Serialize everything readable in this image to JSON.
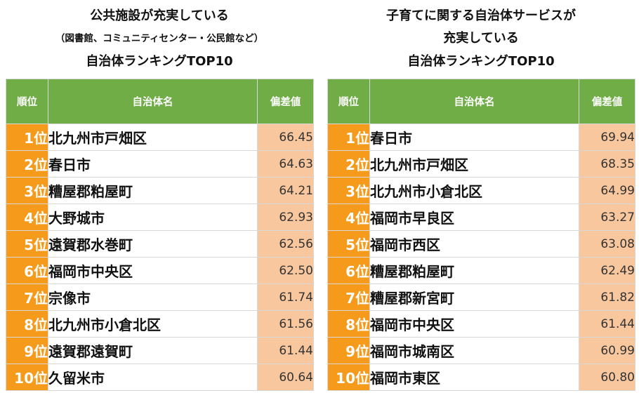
{
  "left": {
    "title_lines": [
      "公共施設が充実している",
      "（図書館、コミュニティセンター・公民館など）",
      "自治体ランキングTOP10"
    ],
    "headers": {
      "rank": "順位",
      "name": "自治体名",
      "score": "偏差値"
    },
    "rows": [
      {
        "rank": "1位",
        "name": "北九州市戸畑区",
        "score": "66.45"
      },
      {
        "rank": "2位",
        "name": "春日市",
        "score": "64.63"
      },
      {
        "rank": "3位",
        "name": "糟屋郡粕屋町",
        "score": "64.21"
      },
      {
        "rank": "4位",
        "name": "大野城市",
        "score": "62.93"
      },
      {
        "rank": "5位",
        "name": "遠賀郡水巻町",
        "score": "62.56"
      },
      {
        "rank": "6位",
        "name": "福岡市中央区",
        "score": "62.50"
      },
      {
        "rank": "7位",
        "name": "宗像市",
        "score": "61.74"
      },
      {
        "rank": "8位",
        "name": "北九州市小倉北区",
        "score": "61.56"
      },
      {
        "rank": "9位",
        "name": "遠賀郡遠賀町",
        "score": "61.44"
      },
      {
        "rank": "10位",
        "name": "久留米市",
        "score": "60.64"
      }
    ]
  },
  "right": {
    "title_lines": [
      "子育てに関する自治体サービスが",
      "充実している",
      "自治体ランキングTOP10"
    ],
    "headers": {
      "rank": "順位",
      "name": "自治体名",
      "score": "偏差値"
    },
    "rows": [
      {
        "rank": "1位",
        "name": "春日市",
        "score": "69.94"
      },
      {
        "rank": "2位",
        "name": "北九州市戸畑区",
        "score": "68.35"
      },
      {
        "rank": "3位",
        "name": "北九州市小倉北区",
        "score": "64.99"
      },
      {
        "rank": "4位",
        "name": "福岡市早良区",
        "score": "63.27"
      },
      {
        "rank": "5位",
        "name": "福岡市西区",
        "score": "63.08"
      },
      {
        "rank": "6位",
        "name": "糟屋郡粕屋町",
        "score": "62.49"
      },
      {
        "rank": "7位",
        "name": "糟屋郡新宮町",
        "score": "61.82"
      },
      {
        "rank": "8位",
        "name": "福岡市中央区",
        "score": "61.44"
      },
      {
        "rank": "9位",
        "name": "福岡市城南区",
        "score": "60.99"
      },
      {
        "rank": "10位",
        "name": "福岡市東区",
        "score": "60.80"
      }
    ]
  },
  "colors": {
    "header_green": "#70ad47",
    "rank_orange": "#f59a1b",
    "score_peach": "#f8c79d"
  }
}
